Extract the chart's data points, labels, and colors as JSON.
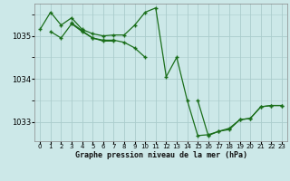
{
  "title": "Graphe pression niveau de la mer (hPa)",
  "bg_color": "#cce8e8",
  "grid_color": "#aacccc",
  "line_color": "#1a6e1a",
  "marker_color": "#1a6e1a",
  "xlim": [
    -0.5,
    23.5
  ],
  "ylim": [
    1032.55,
    1035.75
  ],
  "yticks": [
    1033,
    1034,
    1035
  ],
  "xticks": [
    0,
    1,
    2,
    3,
    4,
    5,
    6,
    7,
    8,
    9,
    10,
    11,
    12,
    13,
    14,
    15,
    16,
    17,
    18,
    19,
    20,
    21,
    22,
    23
  ],
  "series": [
    [
      1035.15,
      1035.55,
      1035.25,
      1035.42,
      1035.15,
      1035.05,
      1035.0,
      1035.02,
      1035.02,
      1035.25,
      1035.55,
      1035.65,
      1034.05,
      1034.5,
      1033.5,
      1032.68,
      1032.7,
      1032.78,
      1032.82,
      1033.05,
      1033.08,
      1033.35,
      1033.38,
      1033.38
    ],
    [
      null,
      1035.1,
      1034.95,
      1035.28,
      1035.1,
      1034.95,
      1034.9,
      1034.9,
      1034.85,
      1034.72,
      1034.5,
      null,
      null,
      null,
      null,
      null,
      null,
      null,
      null,
      null,
      null,
      null,
      null,
      null
    ],
    [
      null,
      null,
      null,
      1035.3,
      1035.12,
      1034.95,
      1034.88,
      1034.88,
      null,
      null,
      null,
      null,
      null,
      null,
      null,
      null,
      null,
      null,
      null,
      null,
      null,
      null,
      null,
      null
    ],
    [
      null,
      null,
      null,
      null,
      null,
      null,
      null,
      null,
      null,
      null,
      null,
      null,
      null,
      null,
      null,
      1033.5,
      1032.68,
      1032.78,
      1032.85,
      1033.05,
      1033.08,
      1033.35,
      1033.38,
      1033.38
    ]
  ]
}
